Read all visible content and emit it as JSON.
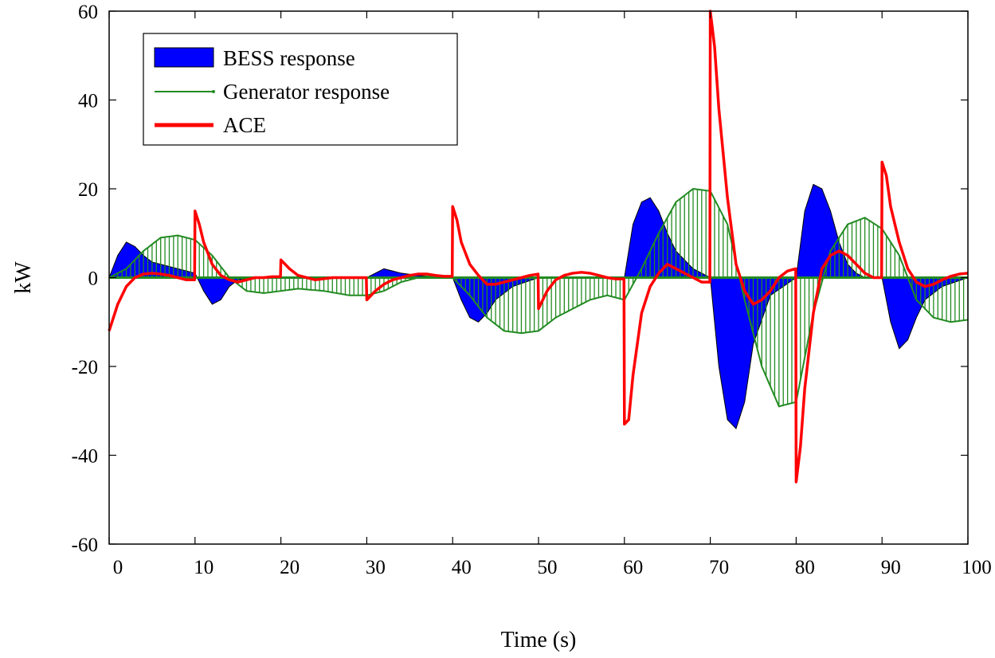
{
  "chart_data": {
    "type": "area",
    "title": "",
    "xlabel": "Time (s)",
    "ylabel": "kW",
    "xlim": [
      0,
      100
    ],
    "ylim": [
      -60,
      60
    ],
    "xticks": [
      0,
      10,
      20,
      30,
      40,
      50,
      60,
      70,
      80,
      90,
      100
    ],
    "yticks": [
      60,
      40,
      20,
      0,
      -20,
      -40,
      -60
    ],
    "grid": false,
    "legend_position": "top-left",
    "legend": [
      {
        "label": "BESS response",
        "color": "#0000ff",
        "style": "filled-area"
      },
      {
        "label": "Generator response",
        "color": "#228b22",
        "style": "stem"
      },
      {
        "label": "ACE",
        "color": "#ff0000",
        "style": "line"
      }
    ],
    "series": [
      {
        "name": "BESS response",
        "color": "#0000ff",
        "x": [
          0,
          1,
          2,
          3,
          4,
          5,
          6,
          8,
          10,
          11,
          12,
          13,
          14,
          15,
          17,
          20,
          22,
          25,
          28,
          30,
          31,
          32,
          33,
          34,
          36,
          38,
          40,
          41,
          42,
          43,
          44,
          45,
          47,
          50,
          53,
          56,
          60,
          61,
          62,
          63,
          64,
          65,
          66,
          68,
          70,
          71,
          72,
          73,
          74,
          75,
          77,
          80,
          81,
          82,
          83,
          84,
          85,
          86,
          87,
          88,
          90,
          91,
          92,
          93,
          94,
          95,
          97,
          100
        ],
        "y": [
          0,
          5,
          8,
          7,
          5,
          3.5,
          3,
          2,
          1,
          -3,
          -6,
          -5,
          -2,
          -0.5,
          0,
          0,
          0,
          0,
          0,
          0,
          1,
          2,
          1.5,
          1,
          0.5,
          0.2,
          0,
          -5,
          -9,
          -10,
          -8,
          -5,
          -2,
          0,
          0,
          0,
          0,
          12,
          17,
          18,
          15,
          10,
          6,
          2,
          0,
          -20,
          -32,
          -34,
          -28,
          -15,
          -4,
          0,
          15,
          21,
          20,
          15,
          8,
          3,
          1,
          0,
          0,
          -10,
          -16,
          -14,
          -9,
          -5,
          -2,
          0
        ]
      },
      {
        "name": "Generator response",
        "color": "#228b22",
        "x": [
          0,
          2,
          4,
          6,
          8,
          10,
          12,
          14,
          16,
          18,
          20,
          22,
          25,
          28,
          30,
          32,
          34,
          36,
          38,
          40,
          42,
          44,
          46,
          48,
          50,
          52,
          54,
          56,
          58,
          60,
          62,
          64,
          66,
          68,
          70,
          72,
          74,
          76,
          78,
          80,
          82,
          84,
          86,
          88,
          90,
          92,
          94,
          96,
          98,
          100
        ],
        "y": [
          0,
          2,
          6,
          9,
          9.5,
          8.5,
          5,
          0,
          -3,
          -3.5,
          -3,
          -2.5,
          -3,
          -4,
          -4,
          -3,
          -1,
          0,
          0.5,
          0,
          -4,
          -9,
          -12,
          -12.5,
          -12,
          -9,
          -7,
          -5,
          -4,
          -5,
          2,
          10,
          17,
          20,
          19.5,
          12,
          -5,
          -20,
          -29,
          -28,
          -8,
          6,
          12,
          13.5,
          11,
          5,
          -5,
          -9,
          -10,
          -9.5
        ]
      },
      {
        "name": "ACE",
        "color": "#ff0000",
        "x": [
          0,
          1,
          2,
          3,
          4,
          5,
          6,
          7,
          8,
          9,
          9.95,
          10,
          10.5,
          11,
          12,
          13,
          14,
          15,
          16,
          17,
          18,
          19,
          19.95,
          20,
          21,
          22,
          24,
          26,
          28,
          29.95,
          30,
          31,
          32,
          33,
          34,
          35,
          36,
          37,
          38,
          39,
          39.95,
          40,
          40.5,
          41,
          42,
          43,
          44,
          45,
          46,
          47,
          48,
          49,
          49.95,
          50,
          51,
          52,
          53,
          54,
          55,
          56,
          57,
          58,
          59,
          59.95,
          60,
          60.5,
          61,
          62,
          63,
          64,
          65,
          66,
          67,
          68,
          69,
          69.95,
          70,
          70.5,
          71,
          72,
          73,
          74,
          75,
          76,
          77,
          78,
          79,
          79.95,
          80,
          80.5,
          81,
          82,
          83,
          84,
          85,
          86,
          87,
          88,
          89,
          89.95,
          90,
          90.5,
          91,
          92,
          93,
          94,
          95,
          96,
          97,
          98,
          99,
          100
        ],
        "y": [
          -12,
          -6,
          -2,
          0,
          0.8,
          1,
          0.8,
          0.5,
          0,
          -0.5,
          -0.5,
          15,
          12,
          8,
          3,
          0.5,
          -0.5,
          -1,
          -0.5,
          0,
          0,
          0.2,
          0.2,
          4,
          2,
          0.5,
          -0.5,
          0,
          0,
          0,
          -5,
          -3,
          -1.5,
          -0.5,
          0,
          0.5,
          0.8,
          0.8,
          0.5,
          0.3,
          0.3,
          16,
          13,
          8,
          3,
          0.5,
          -1.5,
          -1.5,
          -1,
          -0.5,
          0,
          0.5,
          0.8,
          -7,
          -3,
          -0.5,
          0.5,
          1,
          1.2,
          1,
          0.5,
          0,
          -0.3,
          -0.3,
          -33,
          -32,
          -22,
          -8,
          -2,
          1,
          3,
          2,
          1,
          0,
          -1,
          -1,
          60,
          52,
          38,
          18,
          3,
          -3,
          -6,
          -5,
          -3,
          0,
          1.5,
          2,
          -46,
          -38,
          -25,
          -8,
          2,
          5,
          6,
          5,
          3,
          1,
          0,
          0,
          26,
          23,
          16,
          8,
          2,
          -1,
          -2,
          -1.5,
          -0.5,
          0.3,
          0.8,
          1
        ]
      }
    ]
  }
}
